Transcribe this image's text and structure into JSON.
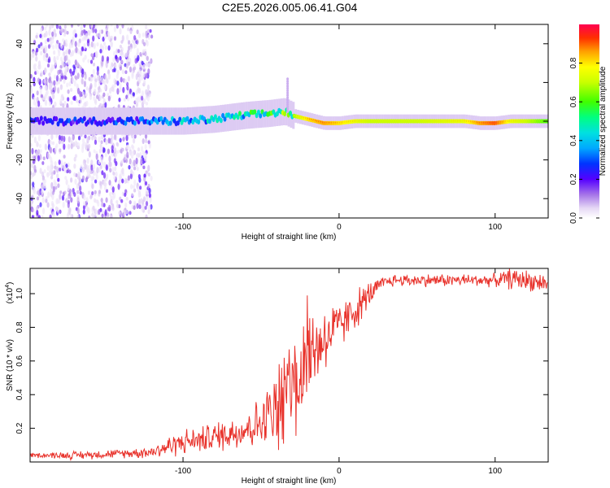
{
  "title": "C2E5.2026.005.06.41.G04",
  "chart_data": [
    {
      "type": "heatmap",
      "xlabel": "Height of straight line (km)",
      "ylabel": "Frequency (Hz)",
      "xlim": [
        -198,
        134
      ],
      "ylim": [
        -50,
        50
      ],
      "xticks": [
        -100,
        0,
        100
      ],
      "xtick_labels": [
        "-100",
        "0",
        "100"
      ],
      "yticks": [
        -40,
        -20,
        0,
        20,
        40
      ],
      "ytick_labels": [
        "-40",
        "-20",
        "0",
        "20",
        "40"
      ],
      "colorbar": {
        "label": "Normalized spectral amplitude",
        "range": [
          0,
          1
        ],
        "ticks": [
          0.0,
          0.2,
          0.4,
          0.6,
          0.8
        ],
        "tick_labels": [
          "0.0",
          "0.2",
          "0.4",
          "0.6",
          "0.8"
        ]
      },
      "ridge": {
        "x": [
          -198,
          -150,
          -125,
          -100,
          -80,
          -60,
          -45,
          -35,
          -30,
          -20,
          -10,
          0,
          10,
          20,
          50,
          80,
          90,
          100,
          110,
          120,
          134
        ],
        "freq_hz": [
          0,
          0,
          0,
          0,
          1,
          3,
          4,
          5,
          3,
          1,
          -1,
          -1,
          0,
          0,
          0,
          0,
          -1,
          -1,
          0,
          0,
          0
        ],
        "amplitude": [
          0.25,
          0.28,
          0.3,
          0.4,
          0.45,
          0.5,
          0.55,
          0.6,
          0.65,
          0.8,
          0.85,
          0.8,
          0.75,
          0.7,
          0.7,
          0.75,
          0.85,
          0.9,
          0.75,
          0.7,
          0.6
        ]
      }
    },
    {
      "type": "line",
      "xlabel": "Height of straight line (km)",
      "ylabel": "SNR (10 * v/v)",
      "y_scale_label": "(x10",
      "y_scale_exponent": "4",
      "y_scale_suffix": ")",
      "xlim": [
        -198,
        134
      ],
      "ylim": [
        0,
        1.15
      ],
      "xticks": [
        -100,
        0,
        100
      ],
      "xtick_labels": [
        "-100",
        "0",
        "100"
      ],
      "yticks": [
        0.2,
        0.4,
        0.6,
        0.8,
        1.0
      ],
      "ytick_labels": [
        "0.2",
        "0.4",
        "0.6",
        "0.8",
        "1.0"
      ],
      "color": "#e8312a",
      "series": [
        {
          "name": "SNR",
          "x": [
            -198,
            -170,
            -140,
            -120,
            -110,
            -100,
            -90,
            -80,
            -70,
            -60,
            -50,
            -40,
            -35,
            -30,
            -25,
            -20,
            -15,
            -10,
            -5,
            0,
            5,
            10,
            15,
            20,
            25,
            30,
            35,
            40,
            60,
            80,
            100,
            110,
            120,
            134
          ],
          "y": [
            0.04,
            0.04,
            0.05,
            0.06,
            0.09,
            0.12,
            0.13,
            0.15,
            0.17,
            0.2,
            0.23,
            0.3,
            0.38,
            0.45,
            0.5,
            0.6,
            0.68,
            0.73,
            0.77,
            0.8,
            0.85,
            0.9,
            0.95,
            1.0,
            1.04,
            1.07,
            1.08,
            1.08,
            1.08,
            1.08,
            1.08,
            1.09,
            1.08,
            1.06
          ],
          "noise": [
            0.01,
            0.02,
            0.02,
            0.03,
            0.05,
            0.06,
            0.06,
            0.07,
            0.08,
            0.1,
            0.12,
            0.18,
            0.25,
            0.3,
            0.28,
            0.25,
            0.2,
            0.18,
            0.15,
            0.12,
            0.1,
            0.1,
            0.08,
            0.06,
            0.04,
            0.03,
            0.03,
            0.03,
            0.03,
            0.03,
            0.03,
            0.05,
            0.05,
            0.04
          ]
        }
      ]
    }
  ]
}
